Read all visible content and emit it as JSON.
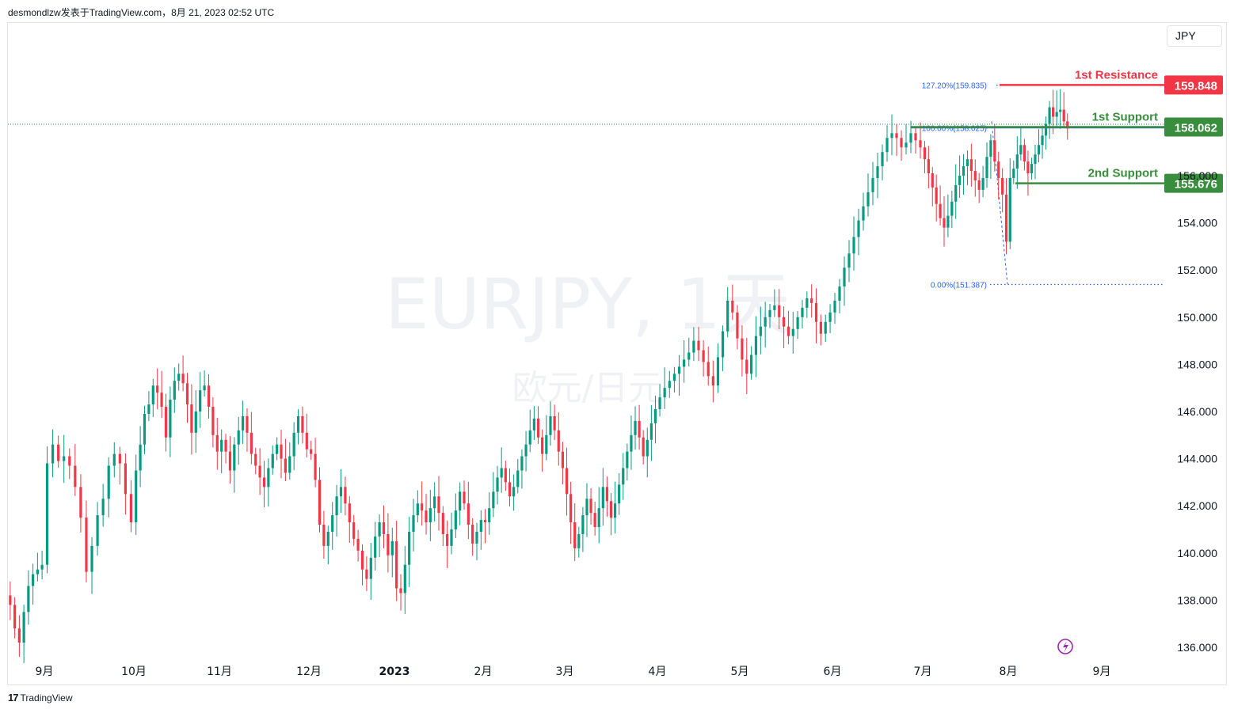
{
  "header": {
    "text": "desmondlzw发表于TradingView.com，8月 21, 2023 02:52 UTC"
  },
  "currency": "JPY",
  "footer": {
    "brand": "TradingView"
  },
  "icons": {
    "logo": "tradingview-logo-icon",
    "lightning": "lightning-icon"
  },
  "colors": {
    "up": "#089981",
    "down": "#f23645",
    "resistance": "#f23645",
    "support": "#388e3c",
    "fib": "#2962ff"
  },
  "chart_data": {
    "type": "candlestick",
    "symbol": "EURJPY, 1天",
    "subtitle": "欧元/日元",
    "x_ticks": [
      "9月",
      "10月",
      "11月",
      "12月",
      "2023",
      "2月",
      "3月",
      "4月",
      "5月",
      "6月",
      "7月",
      "8月",
      "9月"
    ],
    "y_ticks": [
      "136.000",
      "138.000",
      "140.000",
      "142.000",
      "144.000",
      "146.000",
      "148.000",
      "150.000",
      "152.000",
      "154.000",
      "156.000"
    ],
    "ylim": [
      135.3,
      161.8
    ],
    "levels": [
      {
        "label": "1st Resistance",
        "price": "159.848",
        "value": 159.848,
        "kind": "resistance"
      },
      {
        "label": "1st Support",
        "price": "158.062",
        "value": 158.062,
        "kind": "support"
      },
      {
        "label": "2nd Support",
        "price": "155.676",
        "value": 155.676,
        "kind": "support"
      }
    ],
    "fibonacci": [
      {
        "label": "127.20%(159.835)",
        "value": 159.835
      },
      {
        "label": "100.00%(158.025)",
        "value": 158.025
      },
      {
        "label": "0.00%(151.387)",
        "value": 151.387
      }
    ],
    "monthly_closes": [
      {
        "month": "2022-08",
        "values": [
          137.8,
          136.8,
          136.2,
          137.5,
          138.6,
          139.1,
          139.3,
          139.5
        ]
      },
      {
        "month": "2022-09",
        "values": [
          143.8,
          144.6,
          143.9,
          144.1,
          143.7,
          142.8,
          141.5,
          139.2,
          140.3,
          141.6,
          142.3,
          143.7,
          144.2,
          143.8,
          142.5,
          141.3
        ]
      },
      {
        "month": "2022-10",
        "values": [
          143.5,
          144.6,
          145.9,
          146.3,
          147.1,
          146.8,
          146.2,
          144.9,
          146.5,
          147.3,
          147.6,
          147.2,
          146.3,
          145.1,
          146.0,
          146.9,
          147.1,
          146.2,
          145.0,
          144.3
        ]
      },
      {
        "month": "2022-11",
        "values": [
          144.8,
          144.3,
          143.5,
          144.6,
          145.2,
          145.8,
          145.1,
          144.2,
          143.7,
          143.2,
          142.8,
          143.6,
          144.2,
          144.6,
          144.0,
          143.4,
          144.1,
          145.1,
          145.8,
          145.1,
          144.4
        ]
      },
      {
        "month": "2022-12",
        "values": [
          144.2,
          143.1,
          141.2,
          140.3,
          140.9,
          141.6,
          142.4,
          142.8,
          142.1,
          141.3,
          140.6,
          140.1,
          139.3,
          138.9,
          139.8,
          140.7,
          141.3,
          140.8,
          139.9,
          140.5
        ]
      },
      {
        "month": "2023-01",
        "values": [
          138.5,
          138.3,
          139.5,
          140.9,
          141.6,
          142.1,
          141.8,
          141.3,
          141.9,
          142.4,
          141.7,
          140.8,
          140.3,
          141.0,
          141.8,
          142.6,
          142.1,
          141.2,
          140.4,
          140.9,
          141.4
        ]
      },
      {
        "month": "2023-02",
        "values": [
          141.3,
          141.9,
          142.6,
          143.2,
          143.6,
          143.0,
          142.4,
          142.8,
          143.5,
          144.1,
          144.6,
          145.2,
          145.7,
          144.9,
          144.2,
          145.0,
          145.8,
          145.2,
          144.3,
          143.6
        ]
      },
      {
        "month": "2023-03",
        "values": [
          142.5,
          141.3,
          140.2,
          140.8,
          141.6,
          142.3,
          141.7,
          141.1,
          141.9,
          142.8,
          142.2,
          141.5,
          142.1,
          142.9,
          143.6,
          144.3,
          145.0,
          145.6,
          144.9,
          144.1,
          144.8,
          145.5,
          146.1
        ]
      },
      {
        "month": "2023-04",
        "values": [
          146.6,
          147.0,
          147.3,
          147.6,
          147.9,
          148.2,
          148.5,
          149.0,
          148.6,
          148.1,
          147.5,
          147.1,
          148.3,
          149.4,
          150.7,
          150.2,
          149.1
        ]
      },
      {
        "month": "2023-05",
        "values": [
          148.2,
          147.6,
          148.4,
          149.2,
          149.6,
          150.0,
          150.3,
          150.5,
          150.0,
          149.6,
          149.2,
          149.5,
          150.0,
          150.4,
          150.8,
          150.6,
          149.8,
          149.3,
          149.8,
          150.2
        ]
      },
      {
        "month": "2023-06",
        "values": [
          150.7,
          151.3,
          152.1,
          152.7,
          153.4,
          154.1,
          154.7,
          155.3,
          155.9,
          156.4,
          157.0,
          157.6,
          157.8,
          157.6,
          157.2,
          157.4,
          157.8,
          157.5,
          157.2
        ]
      },
      {
        "month": "2023-07",
        "values": [
          156.7,
          156.1,
          155.5,
          154.8,
          154.2,
          153.8,
          154.3,
          154.9,
          155.6,
          156.0,
          156.4,
          156.7,
          156.2,
          155.8,
          155.4,
          155.9,
          156.8,
          157.5,
          156.6,
          155.9,
          155.2,
          153.2
        ]
      },
      {
        "month": "2023-08",
        "values": [
          155.9,
          156.3,
          156.9,
          157.3,
          156.6,
          156.1,
          156.5,
          156.9,
          157.3,
          157.7,
          158.2,
          158.9,
          158.5,
          158.7,
          158.8,
          158.3,
          158.0
        ]
      }
    ]
  }
}
